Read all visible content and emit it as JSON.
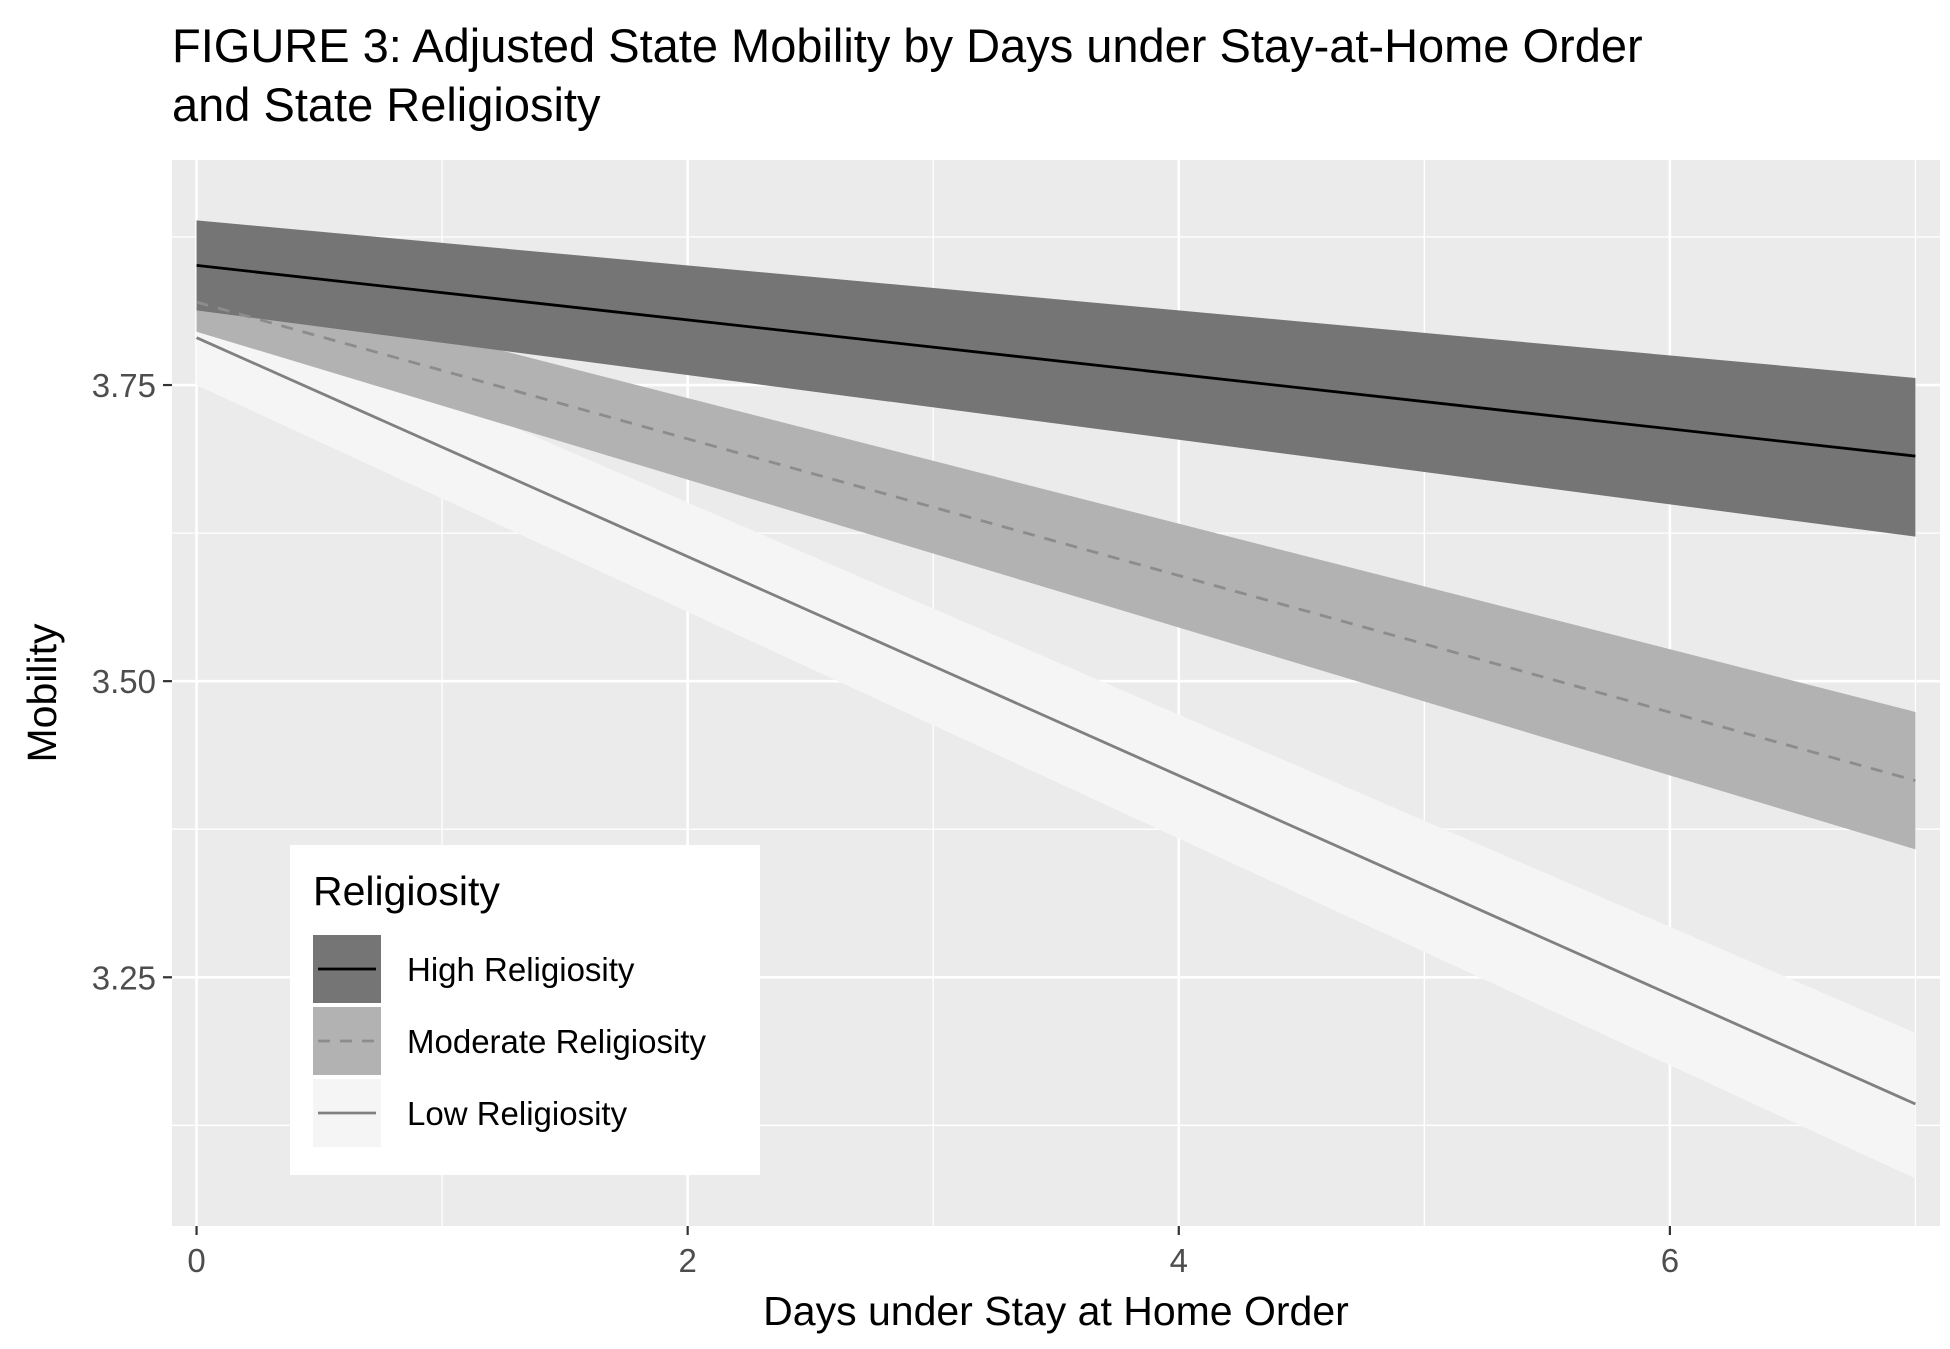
{
  "chart_data": {
    "type": "line",
    "title_lines": [
      "FIGURE 3: Adjusted State Mobility by Days under Stay-at-Home Order",
      "and State Religiosity"
    ],
    "xlabel": "Days under Stay at Home Order",
    "ylabel": "Mobility",
    "xlim": [
      -0.1,
      7.1
    ],
    "ylim": [
      3.04,
      3.94
    ],
    "x_ticks": [
      0,
      2,
      4,
      6
    ],
    "x_tick_labels": [
      "0",
      "2",
      "4",
      "6"
    ],
    "y_ticks": [
      3.25,
      3.5,
      3.75
    ],
    "y_tick_labels": [
      "3.25",
      "3.50",
      "3.75"
    ],
    "grid": true,
    "legend": {
      "title": "Religiosity",
      "position": "bottom-left (inside plot)"
    },
    "series": [
      {
        "name": "Low Religiosity",
        "line_style": "solid",
        "line_color": "#808080",
        "band_color": "#f5f5f5",
        "x": [
          0,
          7
        ],
        "y": [
          3.79,
          3.143
        ],
        "lower": [
          3.75,
          3.08
        ],
        "upper": [
          3.83,
          3.203
        ]
      },
      {
        "name": "Moderate Religiosity",
        "line_style": "dashed",
        "line_color": "#8c8c8c",
        "band_color": "#b2b2b2",
        "x": [
          0,
          7
        ],
        "y": [
          3.82,
          3.416
        ],
        "lower": [
          3.795,
          3.358
        ],
        "upper": [
          3.845,
          3.474
        ]
      },
      {
        "name": "High Religiosity",
        "line_style": "solid",
        "line_color": "#000000",
        "band_color": "#757575",
        "x": [
          0,
          7
        ],
        "y": [
          3.851,
          3.69
        ],
        "lower": [
          3.813,
          3.622
        ],
        "upper": [
          3.889,
          3.756
        ]
      }
    ]
  }
}
